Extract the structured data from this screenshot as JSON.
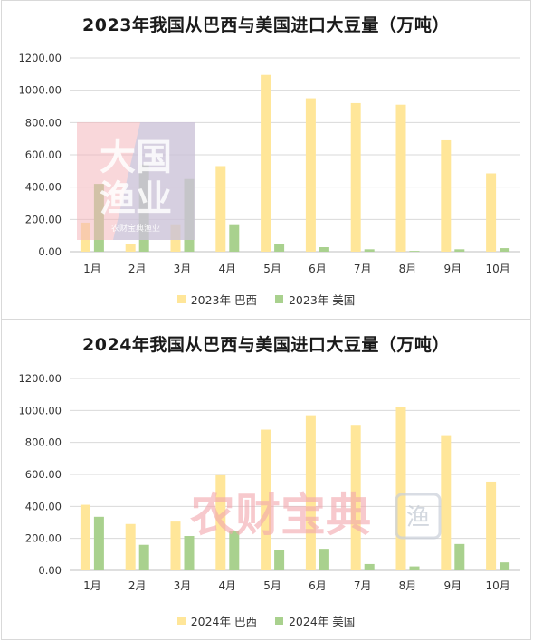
{
  "colors": {
    "brazil": "#ffe699",
    "usa": "#a9d18e",
    "grid": "#d9d9d9",
    "axis": "#bfbfbf",
    "text": "#333333"
  },
  "watermarks": {
    "dagou": {
      "line1": "大国",
      "line2": "渔业",
      "caption": "农财宝典渔业"
    },
    "nongcai": {
      "text": "农财宝典",
      "badge": "渔"
    }
  },
  "chart_data": [
    {
      "type": "bar",
      "title": "2023年我国从巴西与美国进口大豆量（万吨）",
      "categories": [
        "1月",
        "2月",
        "3月",
        "4月",
        "5月",
        "6月",
        "7月",
        "8月",
        "9月",
        "10月"
      ],
      "y_ticks": [
        "0.00",
        "200.00",
        "400.00",
        "600.00",
        "800.00",
        "1000.00",
        "1200.00"
      ],
      "ylim": [
        0,
        1200
      ],
      "grid": true,
      "legend_position": "bottom",
      "series": [
        {
          "name": "2023年 巴西",
          "color": "#ffe699",
          "values": [
            180,
            48,
            170,
            530,
            1095,
            950,
            920,
            910,
            690,
            485
          ]
        },
        {
          "name": "2023年 美国",
          "color": "#a9d18e",
          "values": [
            420,
            540,
            450,
            170,
            50,
            28,
            15,
            5,
            15,
            22
          ]
        }
      ]
    },
    {
      "type": "bar",
      "title": "2024年我国从巴西与美国进口大豆量（万吨）",
      "categories": [
        "1月",
        "2月",
        "3月",
        "4月",
        "5月",
        "6月",
        "7月",
        "8月",
        "9月",
        "10月"
      ],
      "y_ticks": [
        "0.00",
        "200.00",
        "400.00",
        "600.00",
        "800.00",
        "1000.00",
        "1200.00"
      ],
      "ylim": [
        0,
        1200
      ],
      "grid": true,
      "legend_position": "bottom",
      "series": [
        {
          "name": "2024年 巴西",
          "color": "#ffe699",
          "values": [
            410,
            290,
            305,
            595,
            880,
            970,
            910,
            1020,
            840,
            555
          ]
        },
        {
          "name": "2024年 美国",
          "color": "#a9d18e",
          "values": [
            335,
            160,
            215,
            245,
            125,
            135,
            40,
            25,
            165,
            50
          ]
        }
      ]
    }
  ]
}
